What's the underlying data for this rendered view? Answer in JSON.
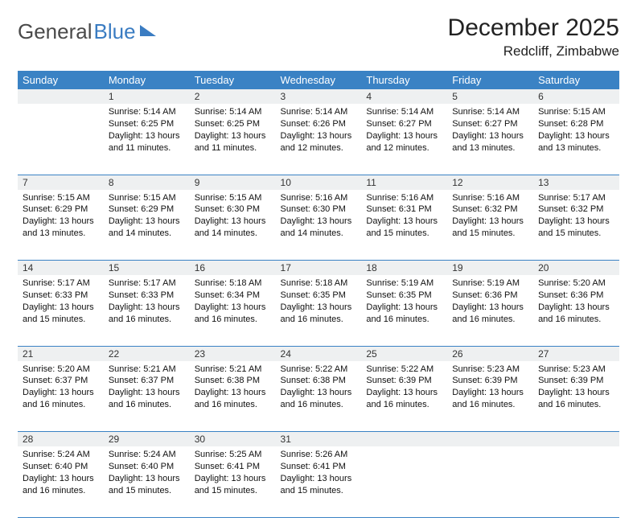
{
  "logo": {
    "textGray": "General",
    "textBlue": "Blue"
  },
  "header": {
    "month": "December 2025",
    "location": "Redcliff, Zimbabwe"
  },
  "colors": {
    "headerBg": "#3a82c4",
    "dayBg": "#eef0f1",
    "pageBg": "#ffffff"
  },
  "dayNames": [
    "Sunday",
    "Monday",
    "Tuesday",
    "Wednesday",
    "Thursday",
    "Friday",
    "Saturday"
  ],
  "weeks": [
    [
      {
        "n": "",
        "sr": "",
        "ss": "",
        "dl": ""
      },
      {
        "n": "1",
        "sr": "Sunrise: 5:14 AM",
        "ss": "Sunset: 6:25 PM",
        "dl": "Daylight: 13 hours and 11 minutes."
      },
      {
        "n": "2",
        "sr": "Sunrise: 5:14 AM",
        "ss": "Sunset: 6:25 PM",
        "dl": "Daylight: 13 hours and 11 minutes."
      },
      {
        "n": "3",
        "sr": "Sunrise: 5:14 AM",
        "ss": "Sunset: 6:26 PM",
        "dl": "Daylight: 13 hours and 12 minutes."
      },
      {
        "n": "4",
        "sr": "Sunrise: 5:14 AM",
        "ss": "Sunset: 6:27 PM",
        "dl": "Daylight: 13 hours and 12 minutes."
      },
      {
        "n": "5",
        "sr": "Sunrise: 5:14 AM",
        "ss": "Sunset: 6:27 PM",
        "dl": "Daylight: 13 hours and 13 minutes."
      },
      {
        "n": "6",
        "sr": "Sunrise: 5:15 AM",
        "ss": "Sunset: 6:28 PM",
        "dl": "Daylight: 13 hours and 13 minutes."
      }
    ],
    [
      {
        "n": "7",
        "sr": "Sunrise: 5:15 AM",
        "ss": "Sunset: 6:29 PM",
        "dl": "Daylight: 13 hours and 13 minutes."
      },
      {
        "n": "8",
        "sr": "Sunrise: 5:15 AM",
        "ss": "Sunset: 6:29 PM",
        "dl": "Daylight: 13 hours and 14 minutes."
      },
      {
        "n": "9",
        "sr": "Sunrise: 5:15 AM",
        "ss": "Sunset: 6:30 PM",
        "dl": "Daylight: 13 hours and 14 minutes."
      },
      {
        "n": "10",
        "sr": "Sunrise: 5:16 AM",
        "ss": "Sunset: 6:30 PM",
        "dl": "Daylight: 13 hours and 14 minutes."
      },
      {
        "n": "11",
        "sr": "Sunrise: 5:16 AM",
        "ss": "Sunset: 6:31 PM",
        "dl": "Daylight: 13 hours and 15 minutes."
      },
      {
        "n": "12",
        "sr": "Sunrise: 5:16 AM",
        "ss": "Sunset: 6:32 PM",
        "dl": "Daylight: 13 hours and 15 minutes."
      },
      {
        "n": "13",
        "sr": "Sunrise: 5:17 AM",
        "ss": "Sunset: 6:32 PM",
        "dl": "Daylight: 13 hours and 15 minutes."
      }
    ],
    [
      {
        "n": "14",
        "sr": "Sunrise: 5:17 AM",
        "ss": "Sunset: 6:33 PM",
        "dl": "Daylight: 13 hours and 15 minutes."
      },
      {
        "n": "15",
        "sr": "Sunrise: 5:17 AM",
        "ss": "Sunset: 6:33 PM",
        "dl": "Daylight: 13 hours and 16 minutes."
      },
      {
        "n": "16",
        "sr": "Sunrise: 5:18 AM",
        "ss": "Sunset: 6:34 PM",
        "dl": "Daylight: 13 hours and 16 minutes."
      },
      {
        "n": "17",
        "sr": "Sunrise: 5:18 AM",
        "ss": "Sunset: 6:35 PM",
        "dl": "Daylight: 13 hours and 16 minutes."
      },
      {
        "n": "18",
        "sr": "Sunrise: 5:19 AM",
        "ss": "Sunset: 6:35 PM",
        "dl": "Daylight: 13 hours and 16 minutes."
      },
      {
        "n": "19",
        "sr": "Sunrise: 5:19 AM",
        "ss": "Sunset: 6:36 PM",
        "dl": "Daylight: 13 hours and 16 minutes."
      },
      {
        "n": "20",
        "sr": "Sunrise: 5:20 AM",
        "ss": "Sunset: 6:36 PM",
        "dl": "Daylight: 13 hours and 16 minutes."
      }
    ],
    [
      {
        "n": "21",
        "sr": "Sunrise: 5:20 AM",
        "ss": "Sunset: 6:37 PM",
        "dl": "Daylight: 13 hours and 16 minutes."
      },
      {
        "n": "22",
        "sr": "Sunrise: 5:21 AM",
        "ss": "Sunset: 6:37 PM",
        "dl": "Daylight: 13 hours and 16 minutes."
      },
      {
        "n": "23",
        "sr": "Sunrise: 5:21 AM",
        "ss": "Sunset: 6:38 PM",
        "dl": "Daylight: 13 hours and 16 minutes."
      },
      {
        "n": "24",
        "sr": "Sunrise: 5:22 AM",
        "ss": "Sunset: 6:38 PM",
        "dl": "Daylight: 13 hours and 16 minutes."
      },
      {
        "n": "25",
        "sr": "Sunrise: 5:22 AM",
        "ss": "Sunset: 6:39 PM",
        "dl": "Daylight: 13 hours and 16 minutes."
      },
      {
        "n": "26",
        "sr": "Sunrise: 5:23 AM",
        "ss": "Sunset: 6:39 PM",
        "dl": "Daylight: 13 hours and 16 minutes."
      },
      {
        "n": "27",
        "sr": "Sunrise: 5:23 AM",
        "ss": "Sunset: 6:39 PM",
        "dl": "Daylight: 13 hours and 16 minutes."
      }
    ],
    [
      {
        "n": "28",
        "sr": "Sunrise: 5:24 AM",
        "ss": "Sunset: 6:40 PM",
        "dl": "Daylight: 13 hours and 16 minutes."
      },
      {
        "n": "29",
        "sr": "Sunrise: 5:24 AM",
        "ss": "Sunset: 6:40 PM",
        "dl": "Daylight: 13 hours and 15 minutes."
      },
      {
        "n": "30",
        "sr": "Sunrise: 5:25 AM",
        "ss": "Sunset: 6:41 PM",
        "dl": "Daylight: 13 hours and 15 minutes."
      },
      {
        "n": "31",
        "sr": "Sunrise: 5:26 AM",
        "ss": "Sunset: 6:41 PM",
        "dl": "Daylight: 13 hours and 15 minutes."
      },
      {
        "n": "",
        "sr": "",
        "ss": "",
        "dl": ""
      },
      {
        "n": "",
        "sr": "",
        "ss": "",
        "dl": ""
      },
      {
        "n": "",
        "sr": "",
        "ss": "",
        "dl": ""
      }
    ]
  ]
}
